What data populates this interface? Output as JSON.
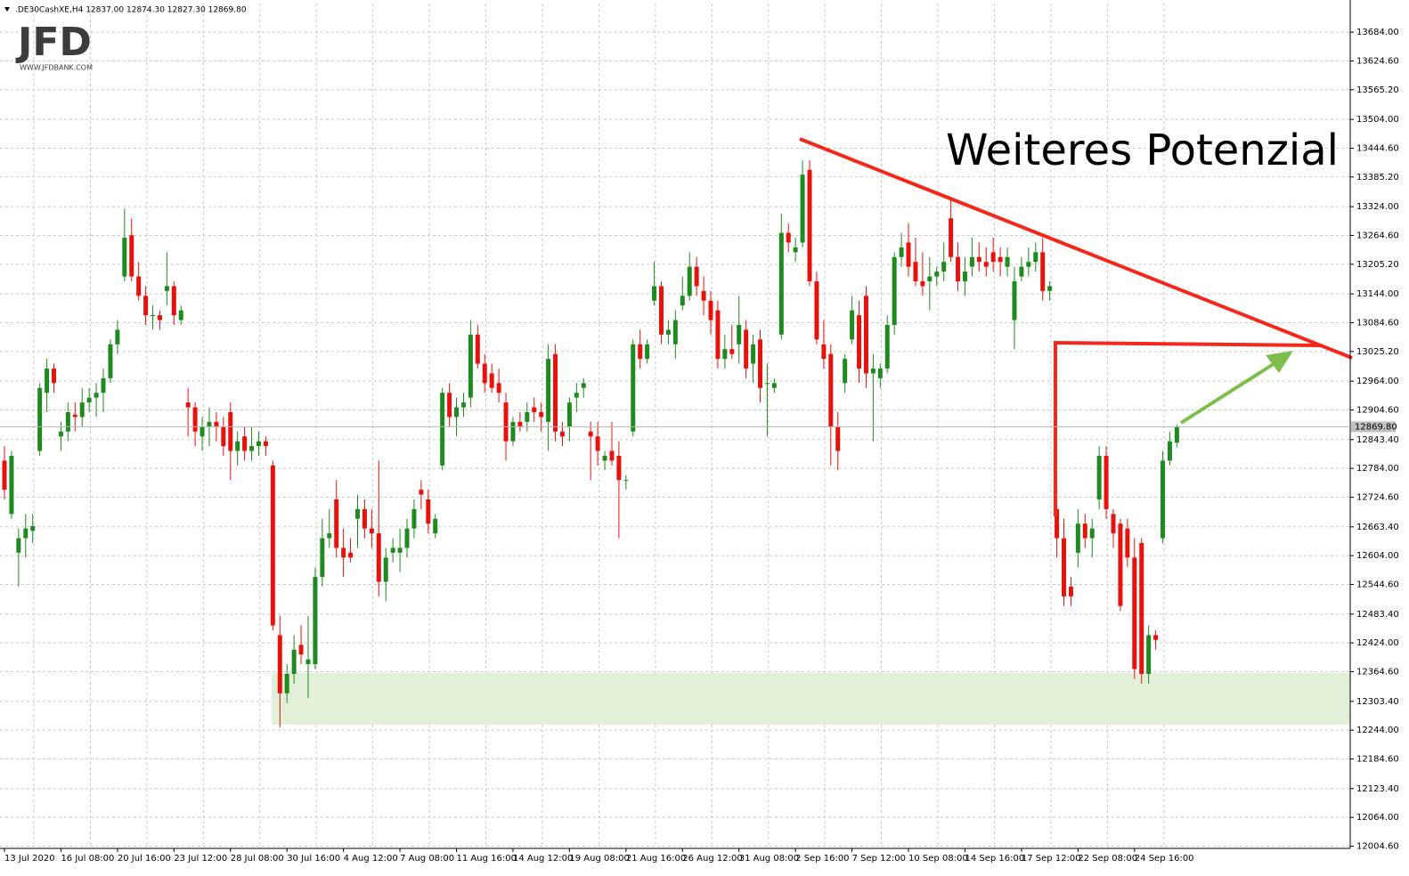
{
  "chart_data": {
    "type": "candlestick",
    "header": ".DE30CashXE,H4  12837.00 12874.30 12827.30 12869.80",
    "logo": "JFD",
    "logo_url": "WWW.JFDBANK.COM",
    "annotation": "Weiteres Potenzial",
    "up_color": "#1f8a1f",
    "down_color": "#e8120c",
    "grid": true,
    "price_tag": {
      "value": 12869.8,
      "label": "12869.80"
    },
    "ylim": [
      12000,
      13743
    ],
    "yticks": [
      {
        "value": 13684,
        "label": "13684.00"
      },
      {
        "value": 13624.6,
        "label": "13624.60"
      },
      {
        "value": 13565.2,
        "label": "13565.20"
      },
      {
        "value": 13504,
        "label": "13504.00"
      },
      {
        "value": 13444.6,
        "label": "13444.60"
      },
      {
        "value": 13385.2,
        "label": "13385.20"
      },
      {
        "value": 13324,
        "label": "13324.00"
      },
      {
        "value": 13264.6,
        "label": "13264.60"
      },
      {
        "value": 13205.2,
        "label": "13205.20"
      },
      {
        "value": 13144,
        "label": "13144.00"
      },
      {
        "value": 13084.6,
        "label": "13084.60"
      },
      {
        "value": 13025.2,
        "label": "13025.20"
      },
      {
        "value": 12964,
        "label": "12964.00"
      },
      {
        "value": 12904.6,
        "label": "12904.60"
      },
      {
        "value": 12843.4,
        "label": "12843.40"
      },
      {
        "value": 12784,
        "label": "12784.00"
      },
      {
        "value": 12724.6,
        "label": "12724.60"
      },
      {
        "value": 12663.4,
        "label": "12663.40"
      },
      {
        "value": 12604,
        "label": "12604.00"
      },
      {
        "value": 12544.6,
        "label": "12544.60"
      },
      {
        "value": 12483.4,
        "label": "12483.40"
      },
      {
        "value": 12424,
        "label": "12424.00"
      },
      {
        "value": 12364.6,
        "label": "12364.60"
      },
      {
        "value": 12303.4,
        "label": "12303.40"
      },
      {
        "value": 12244,
        "label": "12244.00"
      },
      {
        "value": 12184.6,
        "label": "12184.60"
      },
      {
        "value": 12123.4,
        "label": "12123.40"
      },
      {
        "value": 12064,
        "label": "12064.00"
      },
      {
        "value": 12004.6,
        "label": "12004.60"
      }
    ],
    "categories": [
      "13 Jul 2020",
      null,
      null,
      null,
      null,
      null,
      null,
      null,
      "16 Jul 08:00",
      null,
      null,
      null,
      null,
      null,
      null,
      null,
      "20 Jul 16:00",
      null,
      null,
      null,
      null,
      null,
      null,
      null,
      "23 Jul 12:00",
      null,
      null,
      null,
      null,
      null,
      null,
      null,
      "28 Jul 08:00",
      null,
      null,
      null,
      null,
      null,
      null,
      null,
      "30 Jul 16:00",
      null,
      null,
      null,
      null,
      null,
      null,
      null,
      "4 Aug 12:00",
      null,
      null,
      null,
      null,
      null,
      null,
      null,
      "7 Aug 08:00",
      null,
      null,
      null,
      null,
      null,
      null,
      null,
      "11 Aug 16:00",
      null,
      null,
      null,
      null,
      null,
      null,
      null,
      "14 Aug 12:00",
      null,
      null,
      null,
      null,
      null,
      null,
      null,
      "19 Aug 08:00",
      null,
      null,
      null,
      null,
      null,
      null,
      null,
      "21 Aug 16:00",
      null,
      null,
      null,
      null,
      null,
      null,
      null,
      "26 Aug 12:00",
      null,
      null,
      null,
      null,
      null,
      null,
      null,
      "31 Aug 08:00",
      null,
      null,
      null,
      null,
      null,
      null,
      null,
      "2 Sep 16:00",
      null,
      null,
      null,
      null,
      null,
      null,
      null,
      "7 Sep 12:00",
      null,
      null,
      null,
      null,
      null,
      null,
      null,
      "10 Sep 08:00",
      null,
      null,
      null,
      null,
      null,
      null,
      null,
      "14 Sep 16:00",
      null,
      null,
      null,
      null,
      null,
      null,
      null,
      "17 Sep 12:00",
      null,
      null,
      null,
      null,
      null,
      null,
      null,
      "22 Sep 08:00",
      null,
      null,
      null,
      null,
      null,
      null,
      null,
      "24 Sep 16:00",
      null,
      null,
      null,
      null,
      null,
      null
    ],
    "open": [
      12800,
      12690,
      12610,
      12640,
      12655,
      12820,
      12940,
      12990,
      12850,
      12860,
      12895,
      12890,
      12920,
      12930,
      12940,
      12970,
      13040,
      13180,
      13265,
      13180,
      13140,
      13100,
      13100,
      13150,
      13160,
      13090,
      12920,
      12910,
      12850,
      12870,
      12880,
      12870,
      12900,
      12820,
      12850,
      12820,
      12830,
      12840,
      12790,
      12440,
      12320,
      12360,
      12420,
      12380,
      12380,
      12560,
      12640,
      12720,
      12620,
      12610,
      12680,
      12700,
      12660,
      12650,
      12550,
      12610,
      12610,
      12620,
      12660,
      12740,
      12720,
      12650,
      12790,
      12940,
      12890,
      12910,
      12930,
      13060,
      13000,
      12980,
      12960,
      12920,
      12840,
      12880,
      12880,
      12910,
      12900,
      12880,
      13020,
      12860,
      12870,
      12930,
      12950,
      12860,
      12850,
      12800,
      12820,
      12810,
      12760,
      12860,
      13040,
      13010,
      13130,
      13160,
      13060,
      13040,
      13120,
      13140,
      13200,
      13150,
      13130,
      13110,
      13010,
      13030,
      13040,
      13070,
      13000,
      13050,
      12960,
      12950,
      13060,
      13270,
      13230,
      13250,
      13400,
      13170,
      13040,
      13020,
      12870,
      12960,
      13050,
      13100,
      13140,
      12980,
      12970,
      12990,
      13080,
      13220,
      13250,
      13210,
      13170,
      13170,
      13180,
      13190,
      13300,
      13220,
      13170,
      13200,
      13220,
      13210,
      13230,
      13220,
      13200,
      13090,
      13180,
      13200,
      13210,
      13230,
      13150,
      12700,
      12640,
      12540,
      12610,
      12670,
      12640,
      12720,
      12810,
      12690,
      12670,
      12660,
      12600,
      12630,
      12360,
      12440,
      12640,
      12800,
      12837
    ],
    "high": [
      12830,
      12820,
      12660,
      12690,
      12690,
      12960,
      13010,
      13000,
      12880,
      12920,
      12920,
      12950,
      12950,
      12960,
      12990,
      13050,
      13090,
      13320,
      13300,
      13210,
      13160,
      13120,
      13110,
      13230,
      13170,
      13120,
      12950,
      12920,
      12890,
      12910,
      12900,
      12890,
      12920,
      12860,
      12870,
      12870,
      12860,
      12850,
      12800,
      12480,
      12380,
      12440,
      12460,
      12480,
      12580,
      12680,
      12700,
      12760,
      12660,
      12640,
      12730,
      12720,
      12700,
      12800,
      12620,
      12640,
      12660,
      12680,
      12720,
      12760,
      12740,
      12690,
      12950,
      12960,
      12930,
      12940,
      13090,
      13080,
      13020,
      13000,
      12990,
      12940,
      12890,
      12900,
      12920,
      12930,
      12920,
      13040,
      13040,
      12880,
      12930,
      12960,
      12970,
      12880,
      12880,
      12820,
      12880,
      12840,
      12770,
      13050,
      13070,
      13050,
      13210,
      13170,
      13090,
      13110,
      13180,
      13230,
      13220,
      13180,
      13150,
      13130,
      13060,
      13080,
      13140,
      13090,
      13060,
      13070,
      13000,
      12970,
      13310,
      13290,
      13260,
      13420,
      13420,
      13190,
      13090,
      13040,
      12900,
      13020,
      13140,
      13130,
      13160,
      13020,
      13000,
      13100,
      13230,
      13270,
      13290,
      13260,
      13230,
      13220,
      13200,
      13250,
      13340,
      13250,
      13220,
      13260,
      13250,
      13240,
      13260,
      13240,
      13240,
      13200,
      13220,
      13240,
      13250,
      13260,
      13170,
      12750,
      12680,
      12560,
      12700,
      12690,
      12680,
      12830,
      12830,
      12700,
      12680,
      12680,
      12640,
      12640,
      12460,
      12450,
      12820,
      12860,
      12874.3
    ],
    "low": [
      12720,
      12680,
      12540,
      12600,
      12630,
      12810,
      12900,
      12940,
      12820,
      12840,
      12860,
      12870,
      12900,
      12890,
      12900,
      12960,
      13020,
      13170,
      13170,
      13130,
      13080,
      13070,
      13070,
      13120,
      13080,
      13080,
      12850,
      12830,
      12820,
      12830,
      12840,
      12810,
      12760,
      12790,
      12800,
      12800,
      12810,
      12810,
      12450,
      12250,
      12300,
      12340,
      12380,
      12310,
      12370,
      12540,
      12620,
      12600,
      12560,
      12590,
      12620,
      12640,
      12620,
      12520,
      12510,
      12590,
      12570,
      12600,
      12640,
      12700,
      12650,
      12640,
      12780,
      12870,
      12850,
      12890,
      12910,
      12990,
      12940,
      12940,
      12920,
      12800,
      12830,
      12860,
      12860,
      12880,
      12860,
      12820,
      12840,
      12830,
      12840,
      12900,
      12930,
      12760,
      12790,
      12780,
      12790,
      12640,
      12740,
      12850,
      12990,
      13000,
      13120,
      13040,
      13040,
      13010,
      13110,
      13130,
      13140,
      13100,
      13060,
      12990,
      12990,
      13010,
      13000,
      12970,
      12960,
      12920,
      12850,
      12940,
      13050,
      13230,
      13210,
      13240,
      13160,
      13040,
      12990,
      12790,
      12780,
      12940,
      13040,
      12960,
      12950,
      12840,
      12950,
      12980,
      13060,
      13200,
      13180,
      13160,
      13140,
      13110,
      13160,
      13170,
      13210,
      13150,
      13140,
      13180,
      13190,
      13180,
      13190,
      13180,
      13180,
      13030,
      13170,
      13180,
      13190,
      13130,
      13130,
      12600,
      12500,
      12500,
      12580,
      12620,
      12600,
      12700,
      12680,
      12620,
      12490,
      12580,
      12350,
      12340,
      12340,
      12410,
      12630,
      12790,
      12827.3
    ],
    "close": [
      12740,
      12810,
      12640,
      12660,
      12665,
      12950,
      12990,
      12960,
      12860,
      12900,
      12890,
      12920,
      12930,
      12940,
      12970,
      13040,
      13070,
      13260,
      13180,
      13140,
      13100,
      13100,
      13090,
      13160,
      13100,
      13110,
      12910,
      12860,
      12870,
      12880,
      12870,
      12830,
      12820,
      12840,
      12820,
      12830,
      12840,
      12830,
      12460,
      12320,
      12360,
      12410,
      12400,
      12390,
      12560,
      12640,
      12650,
      12620,
      12600,
      12600,
      12700,
      12660,
      12650,
      12550,
      12600,
      12620,
      12620,
      12660,
      12700,
      12730,
      12670,
      12680,
      12940,
      12890,
      12910,
      12920,
      13060,
      13000,
      12960,
      12950,
      12940,
      12840,
      12880,
      12870,
      12900,
      12900,
      12890,
      13010,
      12860,
      12850,
      12920,
      12940,
      12960,
      12850,
      12820,
      12810,
      12800,
      12760,
      12760,
      13040,
      13010,
      13040,
      13160,
      13060,
      13070,
      13090,
      13140,
      13200,
      13160,
      13130,
      13090,
      13010,
      13030,
      13020,
      13080,
      12990,
      13040,
      12950,
      12960,
      12960,
      13270,
      13250,
      13240,
      13390,
      13170,
      13050,
      13010,
      12870,
      12820,
      13010,
      13110,
      12990,
      12980,
      12990,
      12990,
      13080,
      13220,
      13240,
      13200,
      13170,
      13160,
      13180,
      13190,
      13210,
      13220,
      13170,
      13190,
      13220,
      13210,
      13200,
      13210,
      13210,
      13220,
      13170,
      13200,
      13210,
      13230,
      13150,
      13160,
      12640,
      12520,
      12520,
      12670,
      12640,
      12660,
      12810,
      12700,
      12650,
      12500,
      12600,
      12370,
      12360,
      12440,
      12430,
      12800,
      12840,
      12869.8
    ]
  }
}
